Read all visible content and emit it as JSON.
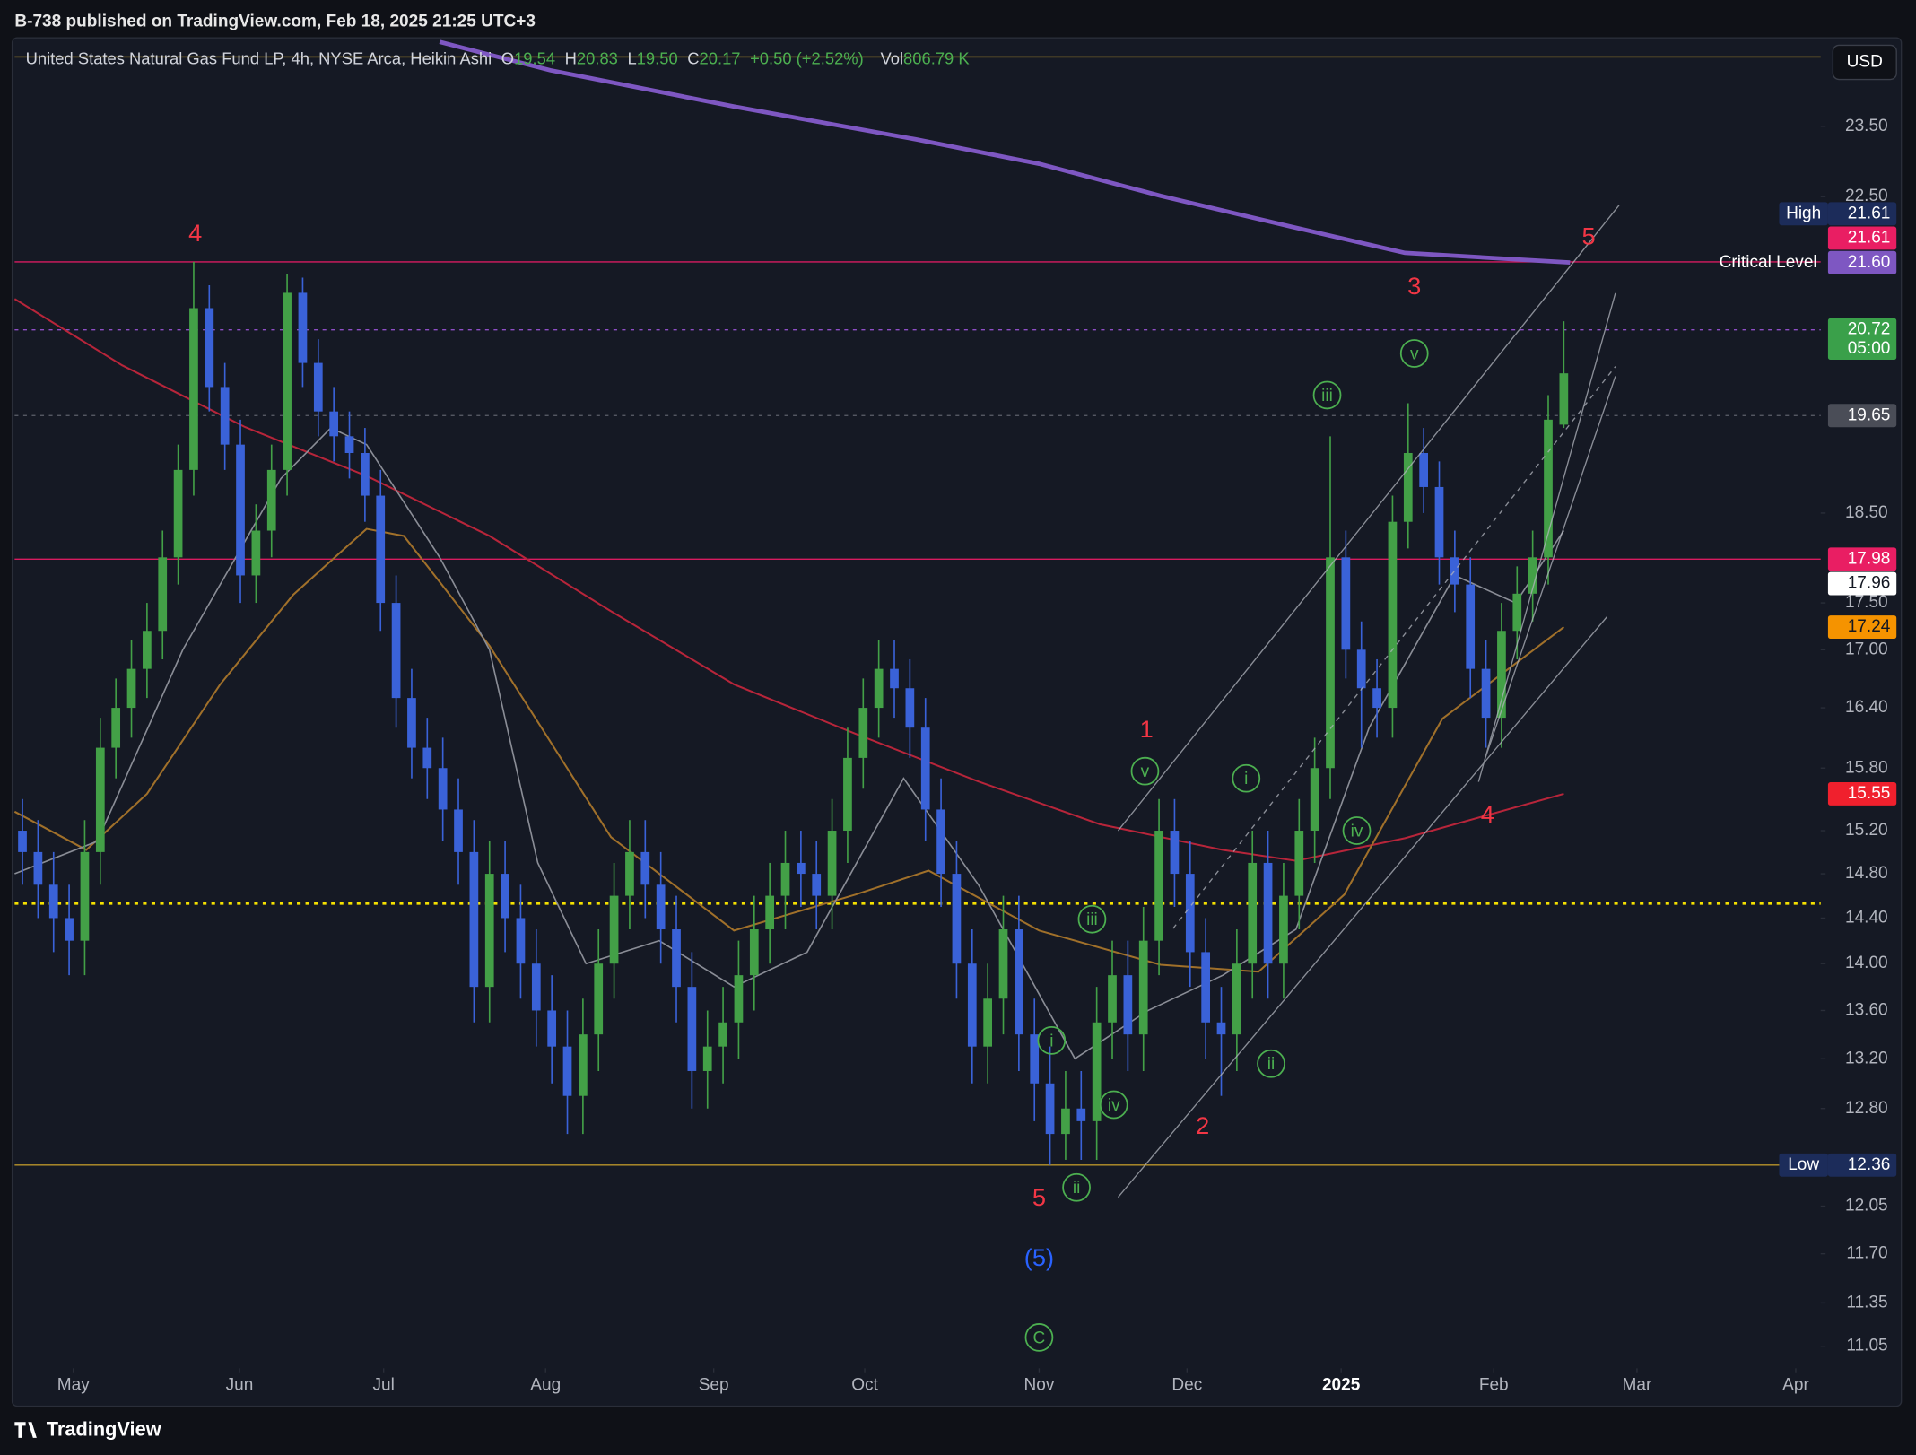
{
  "header": {
    "published": "B-738 published on TradingView.com, Feb 18, 2025 21:25 UTC+3",
    "currency": "USD",
    "brand": "TradingView"
  },
  "legend": {
    "title": "United States Natural Gas Fund LP, 4h, NYSE Arca, Heikin Ashi",
    "open_key": "O",
    "open": "19.54",
    "high_key": "H",
    "high": "20.83",
    "low_key": "L",
    "low": "19.50",
    "close_key": "C",
    "close": "20.17",
    "change": "+0.50 (+2.52%)",
    "volume_key": "Vol",
    "volume": "806.79 K"
  },
  "chart_data": {
    "type": "candlestick",
    "log_scale": true,
    "grid": false,
    "up_color": "#43a047",
    "down_color": "#3a62d8",
    "xlim": [
      0,
      116
    ],
    "xticks": [
      {
        "value": 3.77,
        "label": "May"
      },
      {
        "value": 14.44,
        "label": "Jun"
      },
      {
        "value": 23.7,
        "label": "Jul"
      },
      {
        "value": 34.1,
        "label": "Aug"
      },
      {
        "value": 44.9,
        "label": "Sep"
      },
      {
        "value": 54.6,
        "label": "Oct"
      },
      {
        "value": 65.8,
        "label": "Nov"
      },
      {
        "value": 75.3,
        "label": "Dec"
      },
      {
        "value": 85.2,
        "label": "2025",
        "bold": true
      },
      {
        "value": 95.0,
        "label": "Feb"
      },
      {
        "value": 104.2,
        "label": "Mar"
      },
      {
        "value": 114.4,
        "label": "Apr"
      }
    ],
    "ylim": [
      10.9,
      24.84
    ],
    "yticks": [
      {
        "value": 23.5,
        "label": "23.50"
      },
      {
        "value": 22.5,
        "label": "22.50"
      },
      {
        "value": 18.5,
        "label": "18.50"
      },
      {
        "value": 17.5,
        "label": "17.50"
      },
      {
        "value": 17,
        "label": "17.00"
      },
      {
        "value": 16.4,
        "label": "16.40"
      },
      {
        "value": 15.8,
        "label": "15.80"
      },
      {
        "value": 15.2,
        "label": "15.20"
      },
      {
        "value": 14.8,
        "label": "14.80"
      },
      {
        "value": 14.4,
        "label": "14.40"
      },
      {
        "value": 14,
        "label": "14.00"
      },
      {
        "value": 13.6,
        "label": "13.60"
      },
      {
        "value": 13.2,
        "label": "13.20"
      },
      {
        "value": 12.8,
        "label": "12.80"
      },
      {
        "value": 12.05,
        "label": "12.05"
      },
      {
        "value": 11.7,
        "label": "11.70"
      },
      {
        "value": 11.35,
        "label": "11.35"
      },
      {
        "value": 11.05,
        "label": "11.05"
      }
    ],
    "open": [
      15.2,
      15.0,
      14.7,
      14.4,
      14.2,
      15.0,
      16.0,
      16.4,
      16.8,
      17.2,
      18.0,
      19.0,
      21.0,
      20.0,
      19.3,
      17.8,
      18.3,
      19.0,
      21.2,
      20.3,
      19.7,
      19.4,
      19.2,
      18.7,
      17.5,
      16.5,
      16.0,
      15.8,
      15.4,
      15.0,
      13.8,
      14.8,
      14.4,
      14.0,
      13.6,
      13.3,
      12.9,
      13.4,
      14.0,
      14.6,
      15.0,
      14.7,
      14.3,
      13.8,
      13.1,
      13.3,
      13.5,
      13.9,
      14.3,
      14.6,
      14.9,
      14.8,
      14.6,
      15.2,
      15.9,
      16.4,
      16.8,
      16.6,
      16.2,
      15.4,
      14.8,
      14.0,
      13.3,
      13.7,
      14.3,
      13.4,
      13.0,
      12.6,
      12.8,
      12.7,
      13.5,
      13.9,
      13.4,
      14.2,
      15.2,
      14.8,
      14.1,
      13.5,
      13.4,
      14.0,
      14.9,
      14.0,
      14.6,
      15.2,
      15.8,
      18.0,
      17.0,
      16.6,
      16.4,
      18.4,
      19.2,
      18.8,
      18.0,
      17.7,
      16.8,
      16.3,
      17.2,
      17.6,
      18.0,
      19.54
    ],
    "high": [
      15.5,
      15.3,
      15.0,
      14.7,
      15.3,
      16.3,
      16.7,
      17.1,
      17.5,
      18.3,
      19.3,
      21.61,
      21.3,
      20.3,
      19.6,
      18.6,
      19.3,
      21.45,
      21.4,
      20.6,
      20.0,
      19.7,
      19.5,
      19.0,
      17.8,
      16.8,
      16.3,
      16.1,
      15.7,
      15.3,
      15.1,
      15.1,
      14.7,
      14.3,
      13.9,
      13.6,
      13.7,
      14.3,
      14.9,
      15.3,
      15.3,
      15.0,
      14.6,
      14.1,
      13.6,
      13.8,
      14.2,
      14.6,
      14.9,
      15.2,
      15.2,
      15.1,
      15.5,
      16.2,
      16.7,
      17.1,
      17.1,
      16.9,
      16.5,
      15.7,
      15.1,
      14.3,
      14.0,
      14.6,
      14.6,
      13.7,
      13.3,
      13.1,
      13.1,
      13.8,
      14.2,
      14.2,
      14.5,
      15.5,
      15.5,
      15.1,
      14.4,
      13.8,
      14.3,
      15.2,
      15.2,
      14.9,
      15.5,
      16.1,
      19.4,
      18.3,
      17.3,
      16.9,
      18.7,
      19.8,
      19.5,
      19.1,
      18.3,
      18.0,
      17.1,
      17.5,
      17.9,
      18.3,
      19.9,
      20.83
    ],
    "low": [
      14.7,
      14.4,
      14.1,
      13.9,
      13.9,
      14.7,
      15.7,
      16.1,
      16.5,
      16.9,
      17.7,
      18.7,
      19.7,
      19.0,
      17.5,
      17.5,
      18.0,
      18.7,
      20.0,
      19.4,
      19.1,
      18.9,
      18.4,
      17.2,
      16.2,
      15.7,
      15.5,
      15.1,
      14.7,
      13.5,
      13.5,
      14.1,
      13.7,
      13.3,
      13.0,
      12.6,
      12.6,
      13.1,
      13.7,
      14.3,
      14.4,
      14.0,
      13.5,
      12.8,
      12.8,
      13.0,
      13.2,
      13.6,
      14.0,
      14.3,
      14.5,
      14.3,
      14.3,
      14.9,
      15.6,
      16.1,
      16.3,
      15.9,
      15.1,
      14.5,
      13.7,
      13.0,
      13.0,
      13.4,
      13.1,
      12.7,
      12.36,
      12.4,
      12.4,
      12.4,
      13.2,
      13.1,
      13.1,
      13.9,
      14.5,
      13.8,
      13.2,
      12.9,
      13.1,
      13.7,
      13.7,
      13.7,
      14.3,
      14.9,
      15.5,
      16.7,
      16.0,
      16.1,
      16.1,
      18.1,
      18.5,
      17.7,
      17.4,
      16.5,
      16.0,
      16.0,
      16.9,
      17.3,
      17.7,
      19.5
    ],
    "close": [
      15.0,
      14.7,
      14.4,
      14.2,
      15.0,
      16.0,
      16.4,
      16.8,
      17.2,
      18.0,
      19.0,
      21.0,
      20.0,
      19.3,
      17.8,
      18.3,
      19.0,
      21.2,
      20.3,
      19.7,
      19.4,
      19.2,
      18.7,
      17.5,
      16.5,
      16.0,
      15.8,
      15.4,
      15.0,
      13.8,
      14.8,
      14.4,
      14.0,
      13.6,
      13.3,
      12.9,
      13.4,
      14.0,
      14.6,
      15.0,
      14.7,
      14.3,
      13.8,
      13.1,
      13.3,
      13.5,
      13.9,
      14.3,
      14.6,
      14.9,
      14.8,
      14.6,
      15.2,
      15.9,
      16.4,
      16.8,
      16.6,
      16.2,
      15.4,
      14.8,
      14.0,
      13.3,
      13.7,
      14.3,
      13.4,
      13.0,
      12.6,
      12.8,
      12.7,
      13.5,
      13.9,
      13.4,
      14.2,
      15.2,
      14.8,
      14.1,
      13.5,
      13.4,
      14.0,
      14.9,
      14.0,
      14.6,
      15.2,
      15.8,
      18.0,
      17.0,
      16.6,
      16.4,
      18.4,
      19.2,
      18.8,
      18.0,
      17.7,
      16.8,
      16.3,
      17.2,
      17.6,
      18.0,
      19.6,
      20.17
    ],
    "series": [
      {
        "color": "#7e57c2",
        "width": 3.5,
        "x": [
          27.3,
          34.4,
          46.2,
          57.9,
          65.8,
          73.6,
          81.5,
          89.3,
          99.9
        ],
        "values": [
          24.76,
          24.33,
          23.79,
          23.31,
          22.96,
          22.51,
          22.11,
          21.73,
          21.6
        ]
      },
      {
        "color": "#b7253a",
        "width": 1.5,
        "x": [
          0,
          6.9,
          14.8,
          22.6,
          30.5,
          38.3,
          46.2,
          54.0,
          61.9,
          69.7,
          77.6,
          82.3,
          89.3,
          99.5
        ],
        "values": [
          21.12,
          20.27,
          19.51,
          18.93,
          18.24,
          17.41,
          16.64,
          16.14,
          15.67,
          15.26,
          15.02,
          14.92,
          15.13,
          15.55
        ]
      },
      {
        "color": "#a0702a",
        "width": 1.5,
        "x": [
          0,
          4.6,
          8.5,
          13.2,
          17.9,
          22.6,
          25.0,
          30.5,
          38.3,
          46.2,
          54.0,
          58.7,
          65.8,
          73.6,
          79.9,
          85.4,
          91.7,
          99.5
        ],
        "values": [
          15.38,
          15.02,
          15.55,
          16.64,
          17.59,
          18.32,
          18.24,
          17.04,
          15.14,
          14.29,
          14.61,
          14.83,
          14.29,
          13.99,
          13.93,
          14.61,
          16.29,
          17.24
        ]
      },
      {
        "color": "#8a8d96",
        "width": 1.2,
        "x": [
          0,
          5.3,
          10.8,
          17.1,
          20.3,
          22.6,
          27.3,
          30.5,
          33.6,
          36.7,
          41.4,
          46.2,
          50.9,
          57.1,
          61.9,
          68.1,
          72.8,
          77.6,
          82.3,
          87.0,
          92.5,
          96.4,
          99.5
        ],
        "values": [
          14.8,
          15.1,
          17.0,
          18.9,
          19.5,
          19.3,
          18.0,
          17.0,
          14.9,
          14.0,
          14.2,
          13.8,
          14.1,
          15.7,
          14.7,
          13.2,
          13.6,
          13.9,
          14.3,
          16.2,
          17.8,
          17.5,
          18.3
        ]
      }
    ],
    "levels": [
      {
        "value": 24.53,
        "color": "#b8932a",
        "dash": "solid"
      },
      {
        "value": 21.61,
        "color": "#d81b60",
        "dash": "solid"
      },
      {
        "value": 20.72,
        "color": "#8e4ec6",
        "dash": "dotted"
      },
      {
        "value": 19.65,
        "color": "#5d606b",
        "dash": "dotted"
      },
      {
        "value": 17.98,
        "color": "#d81b60",
        "dash": "solid"
      },
      {
        "value": 14.53,
        "color": "#f5e100",
        "dash": "dotted"
      },
      {
        "value": 12.36,
        "color": "#b8932a",
        "dash": "solid"
      }
    ],
    "price_labels": [
      {
        "value": 21.6,
        "label": "21.60",
        "color": "#7e57c2",
        "text_color": "#ffffff",
        "note": "Critical Level"
      },
      {
        "value": 21.61,
        "label": "21.61",
        "color": "#e91e63",
        "text_color": "#ffffff"
      },
      {
        "value": 21.61,
        "label": "21.61",
        "color": "#1c2c5a",
        "text_color": "#ffffff",
        "tag": "High"
      },
      {
        "value": 20.72,
        "label": "20.72",
        "color": "#3aa04a",
        "text_color": "#ffffff",
        "sub": "05:00"
      },
      {
        "value": 19.65,
        "label": "19.65",
        "color": "#4a4d57",
        "text_color": "#ffffff"
      },
      {
        "value": 17.98,
        "label": "17.98",
        "color": "#e91e63",
        "text_color": "#ffffff"
      },
      {
        "value": 17.96,
        "label": "17.96",
        "color": "#ffffff",
        "text_color": "#131722"
      },
      {
        "value": 17.24,
        "label": "17.24",
        "color": "#f59300",
        "text_color": "#131722"
      },
      {
        "value": 15.55,
        "label": "15.55",
        "color": "#f0202d",
        "text_color": "#ffffff"
      },
      {
        "value": 12.36,
        "label": "12.36",
        "color": "#1c2c5a",
        "text_color": "#ffffff",
        "tag": "Low"
      }
    ],
    "annotations": [
      {
        "text": "4",
        "x": 11.6,
        "y": 21.99,
        "color": "#f23645"
      },
      {
        "text": "1",
        "x": 72.7,
        "y": 16.18,
        "color": "#f23645"
      },
      {
        "text": "2",
        "x": 76.3,
        "y": 12.66,
        "color": "#f23645"
      },
      {
        "text": "3",
        "x": 89.9,
        "y": 21.28,
        "color": "#f23645"
      },
      {
        "text": "4",
        "x": 94.6,
        "y": 15.35,
        "color": "#f23645"
      },
      {
        "text": "5",
        "x": 101.1,
        "y": 21.95,
        "color": "#f23645"
      },
      {
        "text": "5",
        "x": 65.8,
        "y": 12.11,
        "color": "#f23645"
      },
      {
        "text": "(5)",
        "x": 65.8,
        "y": 11.67,
        "color": "#2962ff"
      },
      {
        "text": "C",
        "x": 65.8,
        "y": 11.11,
        "color": "#4caf50",
        "circle": true
      },
      {
        "text": "v",
        "x": 72.6,
        "y": 15.77,
        "color": "#4caf50",
        "circle": true
      },
      {
        "text": "iii",
        "x": 69.2,
        "y": 14.39,
        "color": "#4caf50",
        "circle": true
      },
      {
        "text": "i",
        "x": 66.6,
        "y": 13.35,
        "color": "#4caf50",
        "circle": true
      },
      {
        "text": "iv",
        "x": 70.6,
        "y": 12.83,
        "color": "#4caf50",
        "circle": true
      },
      {
        "text": "ii",
        "x": 68.2,
        "y": 12.19,
        "color": "#4caf50",
        "circle": true
      },
      {
        "text": "i",
        "x": 79.1,
        "y": 15.7,
        "color": "#4caf50",
        "circle": true
      },
      {
        "text": "iv",
        "x": 86.2,
        "y": 15.2,
        "color": "#4caf50",
        "circle": true
      },
      {
        "text": "ii",
        "x": 80.7,
        "y": 13.16,
        "color": "#4caf50",
        "circle": true
      },
      {
        "text": "iii",
        "x": 84.3,
        "y": 19.9,
        "color": "#4caf50",
        "circle": true
      },
      {
        "text": "v",
        "x": 89.9,
        "y": 20.42,
        "color": "#4caf50",
        "circle": true
      }
    ]
  }
}
